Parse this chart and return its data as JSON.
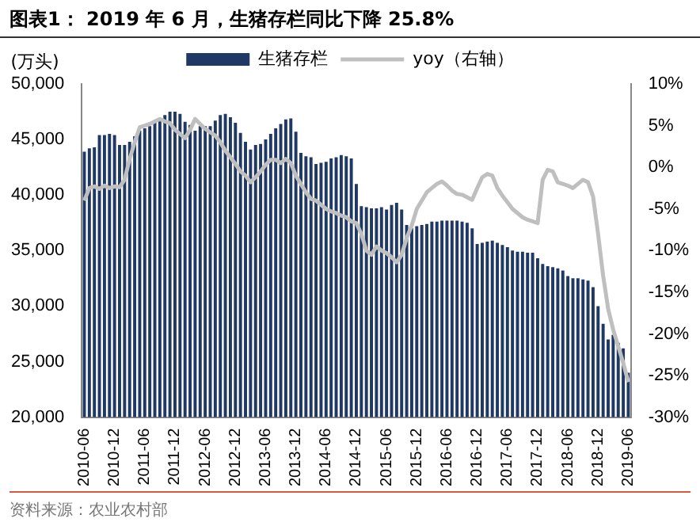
{
  "chart_data": {
    "type": "bar",
    "title": "图表1：  2019 年 6 月，生猪存栏同比下降 25.8%",
    "ylabel": "(万头)",
    "categories": [
      "2010-06",
      null,
      null,
      null,
      null,
      null,
      "2010-12",
      null,
      null,
      null,
      null,
      null,
      "2011-06",
      null,
      null,
      null,
      null,
      null,
      "2011-12",
      null,
      null,
      null,
      null,
      null,
      "2012-06",
      null,
      null,
      null,
      null,
      null,
      "2012-12",
      null,
      null,
      null,
      null,
      null,
      "2013-06",
      null,
      null,
      null,
      null,
      null,
      "2013-12",
      null,
      null,
      null,
      null,
      null,
      "2014-06",
      null,
      null,
      null,
      null,
      null,
      "2014-12",
      null,
      null,
      null,
      null,
      null,
      "2015-06",
      null,
      null,
      null,
      null,
      null,
      "2015-12",
      null,
      null,
      null,
      null,
      null,
      "2016-06",
      null,
      null,
      null,
      null,
      null,
      "2016-12",
      null,
      null,
      null,
      null,
      null,
      "2017-06",
      null,
      null,
      null,
      null,
      null,
      "2017-12",
      null,
      null,
      null,
      null,
      null,
      "2018-06",
      null,
      null,
      null,
      null,
      null,
      "2018-12",
      null,
      null,
      null,
      null,
      null,
      "2019-06"
    ],
    "series": [
      {
        "name": "生猪存栏",
        "color": "#1f3864",
        "values": [
          43900,
          44200,
          44300,
          45400,
          45400,
          45500,
          45400,
          44500,
          44500,
          44800,
          45300,
          45800,
          46000,
          46200,
          46500,
          46800,
          47200,
          47500,
          47500,
          47300,
          46600,
          46300,
          45800,
          46200,
          46200,
          46200,
          46700,
          47200,
          47300,
          47000,
          46500,
          45600,
          44800,
          44100,
          44500,
          44600,
          45000,
          45500,
          46000,
          46400,
          46800,
          46900,
          45700,
          43800,
          43500,
          43400,
          42800,
          42900,
          43000,
          43300,
          43400,
          43600,
          43500,
          43300,
          41000,
          39000,
          38900,
          38800,
          38800,
          38900,
          38700,
          39100,
          39300,
          38700,
          37300,
          37000,
          37200,
          37300,
          37400,
          37600,
          37600,
          37700,
          37700,
          37700,
          37700,
          37600,
          37500,
          37000,
          35600,
          35700,
          35800,
          35900,
          35700,
          35500,
          35300,
          35000,
          34900,
          34900,
          34800,
          34800,
          34300,
          33800,
          33600,
          33500,
          33400,
          33200,
          32700,
          32500,
          32500,
          32400,
          32300,
          31700,
          30000,
          28400,
          27000,
          27400,
          26700,
          26200,
          24000
        ]
      },
      {
        "name": "yoy（右轴）",
        "type": "line",
        "axis": "y2",
        "color": "#bfbfbf",
        "values": [
          -4,
          -2.5,
          -2.3,
          -2.6,
          -2.2,
          -2.5,
          -2.3,
          -2.4,
          -1.5,
          1,
          3,
          4.8,
          5,
          5.2,
          5.5,
          5.8,
          5.5,
          5.3,
          4.5,
          4,
          3.5,
          4.5,
          5.8,
          5.2,
          4.6,
          4.2,
          3.8,
          3,
          2,
          1.2,
          0.4,
          -0.5,
          -1,
          -1.8,
          -1.2,
          -0.5,
          0.3,
          0.9,
          0.9,
          0.5,
          1,
          0.5,
          -1,
          -2,
          -3,
          -3.8,
          -4,
          -4.5,
          -5,
          -5.3,
          -5.5,
          -5.8,
          -6,
          -6.5,
          -6.7,
          -8,
          -10,
          -10.5,
          -9.5,
          -10,
          -10.3,
          -10.8,
          -11.4,
          -10.5,
          -8.5,
          -7,
          -5,
          -4,
          -3,
          -2.5,
          -2,
          -1.7,
          -2.2,
          -2.8,
          -3.2,
          -3.3,
          -3.6,
          -3.9,
          -2.5,
          -1.2,
          -0.8,
          -1,
          -2.5,
          -3.4,
          -4.2,
          -5,
          -5.5,
          -6,
          -6.3,
          -6.5,
          -6.7,
          -1.5,
          -0.3,
          -0.5,
          -1.8,
          -2,
          -2.2,
          -2.5,
          -2,
          -1.5,
          -1.8,
          -3.5,
          -8,
          -13,
          -17,
          -19.5,
          -21.5,
          -23.5,
          -25.8
        ]
      }
    ],
    "ylim": [
      20000,
      50000
    ],
    "yticks": [
      {
        "value": 20000,
        "label": "20,000"
      },
      {
        "value": 25000,
        "label": "25,000"
      },
      {
        "value": 30000,
        "label": "30,000"
      },
      {
        "value": 35000,
        "label": "35,000"
      },
      {
        "value": 40000,
        "label": "40,000"
      },
      {
        "value": 45000,
        "label": "45,000"
      },
      {
        "value": 50000,
        "label": "50,000"
      }
    ],
    "y2lim": [
      -30,
      10
    ],
    "y2ticks": [
      {
        "value": -30,
        "label": "-30%"
      },
      {
        "value": -25,
        "label": "-25%"
      },
      {
        "value": -20,
        "label": "-20%"
      },
      {
        "value": -15,
        "label": "-15%"
      },
      {
        "value": -10,
        "label": "-10%"
      },
      {
        "value": -5,
        "label": "-5%"
      },
      {
        "value": 0,
        "label": "0%"
      },
      {
        "value": 5,
        "label": "5%"
      },
      {
        "value": 10,
        "label": "10%"
      }
    ],
    "grid": false,
    "legend": "top",
    "marker": "none",
    "annotations": [
      "资料来源：农业农村部"
    ]
  }
}
